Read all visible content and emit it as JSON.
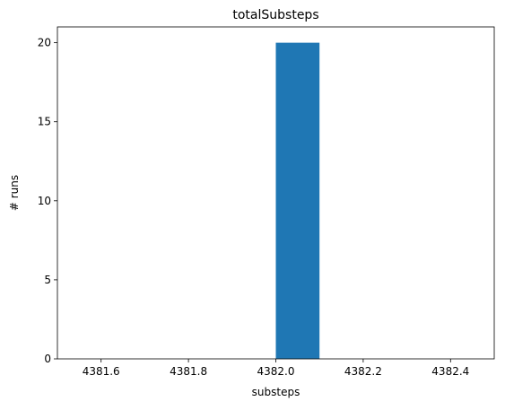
{
  "chart_data": {
    "type": "bar",
    "title": "totalSubsteps",
    "xlabel": "substeps",
    "ylabel": "# runs",
    "xlim": [
      4381.5,
      4382.5
    ],
    "ylim": [
      0,
      21
    ],
    "grid": false,
    "bars": [
      {
        "x0": 4382.0,
        "x1": 4382.1,
        "value": 20
      }
    ],
    "xticks": [
      {
        "value": 4381.6,
        "label": "4381.6"
      },
      {
        "value": 4381.8,
        "label": "4381.8"
      },
      {
        "value": 4382.0,
        "label": "4382.0"
      },
      {
        "value": 4382.2,
        "label": "4382.2"
      },
      {
        "value": 4382.4,
        "label": "4382.4"
      }
    ],
    "yticks": [
      {
        "value": 0,
        "label": "0"
      },
      {
        "value": 5,
        "label": "5"
      },
      {
        "value": 10,
        "label": "10"
      },
      {
        "value": 15,
        "label": "15"
      },
      {
        "value": 20,
        "label": "20"
      }
    ],
    "colors": {
      "bar": "#1f77b4",
      "axes": "#000000",
      "background": "#ffffff"
    }
  }
}
